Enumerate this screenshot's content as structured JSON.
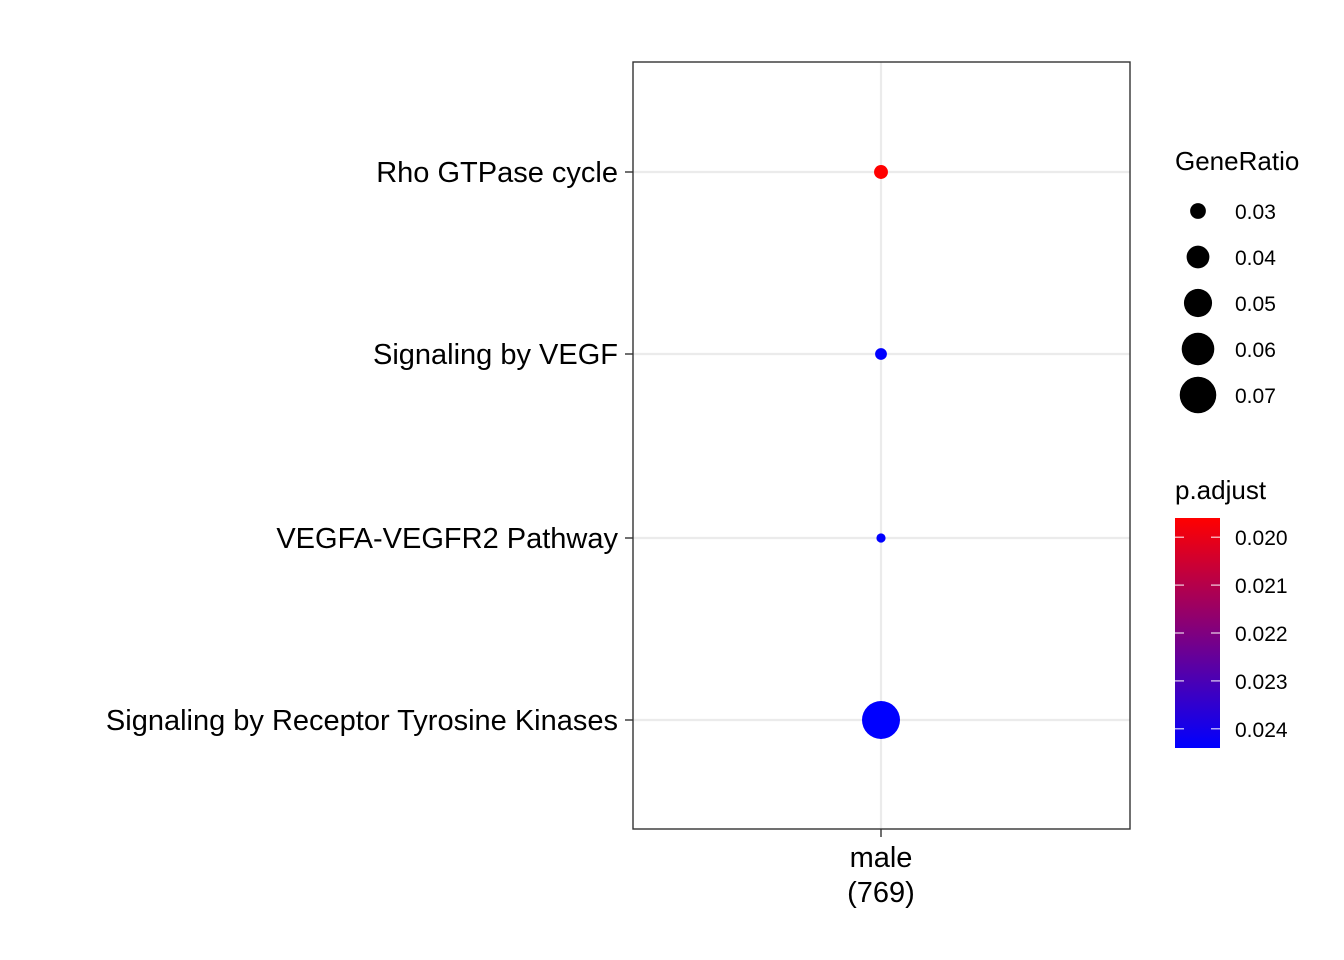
{
  "chart_data": {
    "type": "scatter",
    "title": "",
    "xlabel": "",
    "ylabel": "",
    "x_categories": [
      {
        "line1": "male",
        "line2": "(769)"
      }
    ],
    "y_categories": [
      "Rho GTPase cycle",
      "Signaling by VEGF",
      "VEGFA-VEGFR2 Pathway",
      "Signaling by Receptor Tyrosine Kinases"
    ],
    "points": [
      {
        "x": "male\n(769)",
        "y": "Rho GTPase cycle",
        "gene_ratio": 0.028,
        "p_adjust": 0.0196
      },
      {
        "x": "male\n(769)",
        "y": "Signaling by VEGF",
        "gene_ratio": 0.026,
        "p_adjust": 0.0244
      },
      {
        "x": "male\n(769)",
        "y": "VEGFA-VEGFR2 Pathway",
        "gene_ratio": 0.024,
        "p_adjust": 0.0244
      },
      {
        "x": "male\n(769)",
        "y": "Signaling by Receptor Tyrosine Kinases",
        "gene_ratio": 0.074,
        "p_adjust": 0.0244
      }
    ],
    "size_legend": {
      "title": "GeneRatio",
      "breaks": [
        0.03,
        0.04,
        0.05,
        0.06,
        0.07
      ],
      "labels": [
        "0.03",
        "0.04",
        "0.05",
        "0.06",
        "0.07"
      ]
    },
    "color_legend": {
      "title": "p.adjust",
      "low_color": "#0000FF",
      "high_color": "#FF0000",
      "range": [
        0.0196,
        0.0244
      ],
      "breaks": [
        0.02,
        0.021,
        0.022,
        0.023,
        0.024
      ],
      "labels": [
        "0.020",
        "0.021",
        "0.022",
        "0.023",
        "0.024"
      ]
    },
    "grid": true,
    "legend_position": "right",
    "colors": {
      "grid": "#EBEBEB",
      "panel_border": "#333333",
      "tick": "#333333"
    }
  }
}
